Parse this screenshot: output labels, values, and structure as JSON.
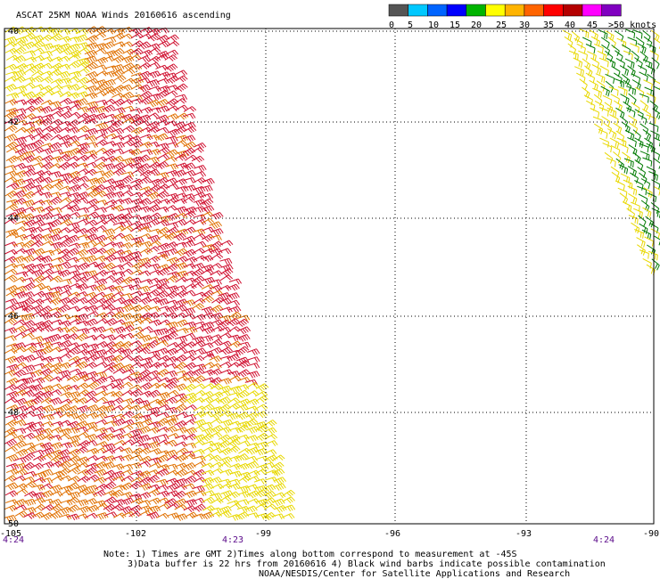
{
  "title": "ASCAT 25KM NOAA Winds 20160616 ascending",
  "legend": {
    "labels": [
      "0",
      "5",
      "10",
      "15",
      "20",
      "25",
      "30",
      "35",
      "40",
      "45",
      ">50 knots"
    ],
    "colors": [
      "#555555",
      "#00c8ff",
      "#0064ff",
      "#0000ff",
      "#00b400",
      "#ffff00",
      "#ffb400",
      "#ff6400",
      "#ff0000",
      "#b40000",
      "#ff00ff",
      "#8000c0"
    ]
  },
  "axes": {
    "lat_labels": [
      "-40",
      "-42",
      "-44",
      "-46",
      "-48",
      "-50"
    ],
    "lon_labels": [
      "-105",
      "-102",
      "-99",
      "-96",
      "-93",
      "-90"
    ]
  },
  "times": [
    "4:24",
    "4:23",
    "4:24"
  ],
  "notes": [
    "Note: 1) Times are GMT 2)Times along bottom correspond to measurement at -45S",
    "3)Data buffer is 22 hrs from 20160616 4) Black wind barbs indicate possible contamination",
    "NOAA/NESDIS/Center for Satellite Applications and Research"
  ],
  "colors": {
    "barb_low": "#e8d800",
    "barb_mid": "#e07000",
    "barb_high": "#d01030",
    "barb_green": "#007a00",
    "time_label": "#5a0a8a"
  }
}
